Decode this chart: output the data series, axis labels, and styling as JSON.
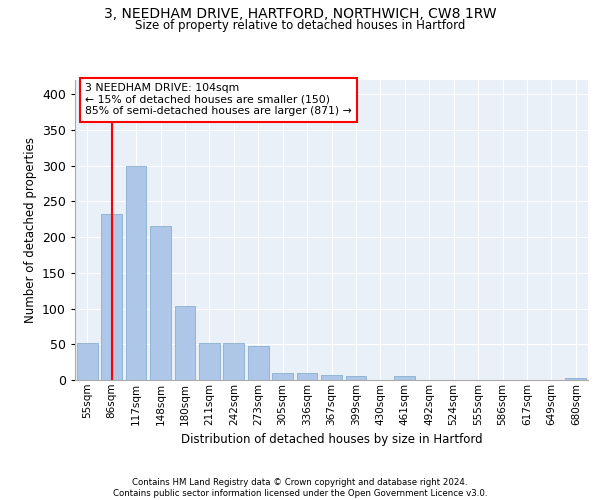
{
  "title_line1": "3, NEEDHAM DRIVE, HARTFORD, NORTHWICH, CW8 1RW",
  "title_line2": "Size of property relative to detached houses in Hartford",
  "xlabel": "Distribution of detached houses by size in Hartford",
  "ylabel": "Number of detached properties",
  "categories": [
    "55sqm",
    "86sqm",
    "117sqm",
    "148sqm",
    "180sqm",
    "211sqm",
    "242sqm",
    "273sqm",
    "305sqm",
    "336sqm",
    "367sqm",
    "399sqm",
    "430sqm",
    "461sqm",
    "492sqm",
    "524sqm",
    "555sqm",
    "586sqm",
    "617sqm",
    "649sqm",
    "680sqm"
  ],
  "values": [
    52,
    232,
    300,
    215,
    103,
    52,
    52,
    48,
    10,
    10,
    7,
    5,
    0,
    5,
    0,
    0,
    0,
    0,
    0,
    0,
    3
  ],
  "bar_color": "#aec6e8",
  "bar_edge_color": "#8ab0d0",
  "vline_color": "red",
  "vline_x": 1.0,
  "annotation_text": "3 NEEDHAM DRIVE: 104sqm\n← 15% of detached houses are smaller (150)\n85% of semi-detached houses are larger (871) →",
  "ylim": [
    0,
    420
  ],
  "yticks": [
    0,
    50,
    100,
    150,
    200,
    250,
    300,
    350,
    400
  ],
  "background_color": "#eaf0f8",
  "footer_line1": "Contains HM Land Registry data © Crown copyright and database right 2024.",
  "footer_line2": "Contains public sector information licensed under the Open Government Licence v3.0."
}
